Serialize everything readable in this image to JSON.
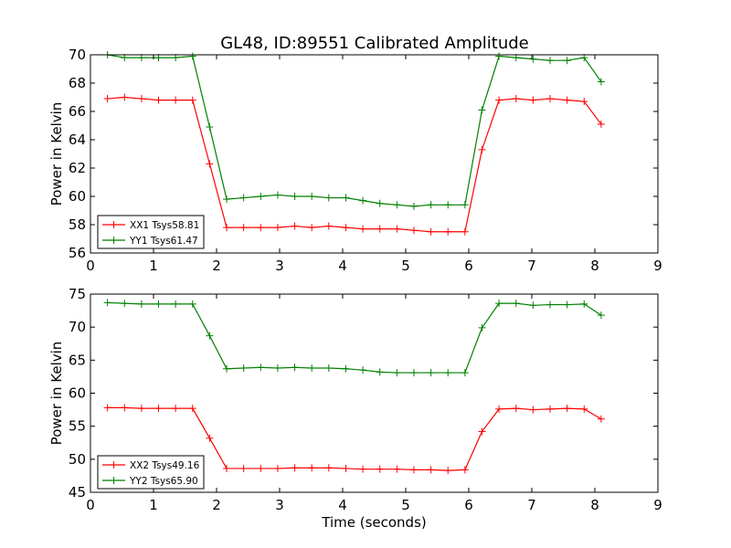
{
  "title": "GL48, ID:89551 Calibrated Amplitude",
  "chart_data": [
    {
      "type": "line",
      "ylabel": "Power in Kelvin",
      "xlabel": "",
      "xlim": [
        0,
        9
      ],
      "ylim": [
        56,
        70
      ],
      "xticks": [
        0,
        1,
        2,
        3,
        4,
        5,
        6,
        7,
        8,
        9
      ],
      "yticks": [
        56,
        58,
        60,
        62,
        64,
        66,
        68,
        70
      ],
      "grid": false,
      "legend_position": "lower-left",
      "series": [
        {
          "name": "XX1 Tsys58.81",
          "color": "#ff0000",
          "marker": "+",
          "x": [
            0.27,
            0.54,
            0.81,
            1.08,
            1.35,
            1.62,
            1.89,
            2.16,
            2.43,
            2.7,
            2.97,
            3.24,
            3.51,
            3.78,
            4.05,
            4.32,
            4.59,
            4.86,
            5.13,
            5.4,
            5.67,
            5.94,
            6.21,
            6.48,
            6.75,
            7.02,
            7.29,
            7.56,
            7.83,
            8.1
          ],
          "y": [
            66.9,
            67.0,
            66.9,
            66.8,
            66.8,
            66.8,
            62.3,
            57.8,
            57.8,
            57.8,
            57.8,
            57.9,
            57.8,
            57.9,
            57.8,
            57.7,
            57.7,
            57.7,
            57.6,
            57.5,
            57.5,
            57.5,
            63.3,
            66.8,
            66.9,
            66.8,
            66.9,
            66.8,
            66.7,
            65.1
          ]
        },
        {
          "name": "YY1 Tsys61.47",
          "color": "#008000",
          "marker": "+",
          "x": [
            0.27,
            0.54,
            0.81,
            1.08,
            1.35,
            1.62,
            1.89,
            2.16,
            2.43,
            2.7,
            2.97,
            3.24,
            3.51,
            3.78,
            4.05,
            4.32,
            4.59,
            4.86,
            5.13,
            5.4,
            5.67,
            5.94,
            6.21,
            6.48,
            6.75,
            7.02,
            7.29,
            7.56,
            7.83,
            8.1
          ],
          "y": [
            70.0,
            69.8,
            69.8,
            69.8,
            69.8,
            69.9,
            64.9,
            59.8,
            59.9,
            60.0,
            60.1,
            60.0,
            60.0,
            59.9,
            59.9,
            59.7,
            59.5,
            59.4,
            59.3,
            59.4,
            59.4,
            59.4,
            66.1,
            69.9,
            69.8,
            69.7,
            69.6,
            69.6,
            69.8,
            68.1
          ]
        }
      ]
    },
    {
      "type": "line",
      "ylabel": "Power in Kelvin",
      "xlabel": "Time (seconds)",
      "xlim": [
        0,
        9
      ],
      "ylim": [
        45,
        75
      ],
      "xticks": [
        0,
        1,
        2,
        3,
        4,
        5,
        6,
        7,
        8,
        9
      ],
      "yticks": [
        45,
        50,
        55,
        60,
        65,
        70,
        75
      ],
      "grid": false,
      "legend_position": "lower-left",
      "series": [
        {
          "name": "XX2 Tsys49.16",
          "color": "#ff0000",
          "marker": "+",
          "x": [
            0.27,
            0.54,
            0.81,
            1.08,
            1.35,
            1.62,
            1.89,
            2.16,
            2.43,
            2.7,
            2.97,
            3.24,
            3.51,
            3.78,
            4.05,
            4.32,
            4.59,
            4.86,
            5.13,
            5.4,
            5.67,
            5.94,
            6.21,
            6.48,
            6.75,
            7.02,
            7.29,
            7.56,
            7.83,
            8.1
          ],
          "y": [
            57.8,
            57.8,
            57.7,
            57.7,
            57.7,
            57.7,
            53.2,
            48.6,
            48.6,
            48.6,
            48.6,
            48.7,
            48.7,
            48.7,
            48.6,
            48.5,
            48.5,
            48.5,
            48.4,
            48.4,
            48.3,
            48.4,
            54.2,
            57.6,
            57.7,
            57.5,
            57.6,
            57.7,
            57.6,
            56.1
          ]
        },
        {
          "name": "YY2 Tsys65.90",
          "color": "#008000",
          "marker": "+",
          "x": [
            0.27,
            0.54,
            0.81,
            1.08,
            1.35,
            1.62,
            1.89,
            2.16,
            2.43,
            2.7,
            2.97,
            3.24,
            3.51,
            3.78,
            4.05,
            4.32,
            4.59,
            4.86,
            5.13,
            5.4,
            5.67,
            5.94,
            6.21,
            6.48,
            6.75,
            7.02,
            7.29,
            7.56,
            7.83,
            8.1
          ],
          "y": [
            73.7,
            73.6,
            73.5,
            73.5,
            73.5,
            73.5,
            68.7,
            63.7,
            63.8,
            63.9,
            63.8,
            63.9,
            63.8,
            63.8,
            63.7,
            63.5,
            63.2,
            63.1,
            63.1,
            63.1,
            63.1,
            63.1,
            69.9,
            73.6,
            73.6,
            73.3,
            73.4,
            73.4,
            73.5,
            71.8
          ]
        }
      ]
    }
  ]
}
